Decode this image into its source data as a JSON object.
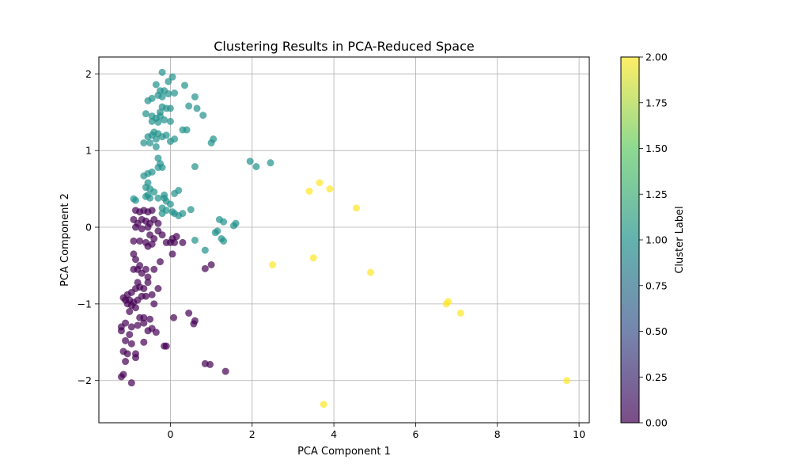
{
  "chart_data": {
    "type": "scatter",
    "title": "Clustering Results in PCA-Reduced Space",
    "xlabel": "PCA Component 1",
    "ylabel": "PCA Component 2",
    "xlim": [
      -1.75,
      10.25
    ],
    "ylim": [
      -2.55,
      2.22
    ],
    "xticks": [
      0,
      2,
      4,
      6,
      8,
      10
    ],
    "xtick_labels": [
      "0",
      "2",
      "4",
      "6",
      "8",
      "10"
    ],
    "yticks": [
      -2,
      -1,
      0,
      1,
      2
    ],
    "ytick_labels": [
      "−2",
      "−1",
      "0",
      "1",
      "2"
    ],
    "grid": true,
    "colorbar": {
      "label": "Cluster Label",
      "range": [
        0,
        2
      ],
      "ticks": [
        0,
        0.25,
        0.5,
        0.75,
        1.0,
        1.25,
        1.5,
        1.75,
        2.0
      ],
      "tick_labels": [
        "0.00",
        "0.25",
        "0.50",
        "0.75",
        "1.00",
        "1.25",
        "1.50",
        "1.75",
        "2.00"
      ],
      "colormap": [
        "#440154",
        "#3b528b",
        "#21918c",
        "#5ec962",
        "#fde725"
      ]
    },
    "series": [
      {
        "cluster": 0,
        "color": "#440154",
        "points": [
          [
            -0.85,
            0.22
          ],
          [
            -0.75,
            0.2
          ],
          [
            -0.65,
            0.22
          ],
          [
            -0.55,
            0.2
          ],
          [
            -0.45,
            0.22
          ],
          [
            -0.9,
            0.1
          ],
          [
            -0.8,
            0.05
          ],
          [
            -0.7,
            0.1
          ],
          [
            -0.6,
            0.08
          ],
          [
            -0.5,
            0.05
          ],
          [
            -0.4,
            0.1
          ],
          [
            -0.3,
            0.05
          ],
          [
            -0.85,
            0.0
          ],
          [
            -0.7,
            -0.02
          ],
          [
            -0.55,
            0.0
          ],
          [
            -0.3,
            -0.05
          ],
          [
            -0.2,
            -0.1
          ],
          [
            -0.5,
            -0.1
          ],
          [
            -0.4,
            -0.15
          ],
          [
            -0.9,
            -0.18
          ],
          [
            -0.75,
            -0.18
          ],
          [
            -0.6,
            -0.2
          ],
          [
            -0.45,
            -0.22
          ],
          [
            -0.55,
            -0.25
          ],
          [
            -0.1,
            -0.2
          ],
          [
            0.0,
            -0.2
          ],
          [
            0.05,
            -0.15
          ],
          [
            0.15,
            -0.12
          ],
          [
            0.1,
            -0.2
          ],
          [
            0.3,
            -0.2
          ],
          [
            0.05,
            -0.35
          ],
          [
            -0.25,
            -0.45
          ],
          [
            -0.9,
            -0.35
          ],
          [
            -0.85,
            -0.42
          ],
          [
            -0.75,
            -0.5
          ],
          [
            -0.9,
            -0.55
          ],
          [
            -0.8,
            -0.55
          ],
          [
            -0.6,
            -0.55
          ],
          [
            -0.7,
            -0.6
          ],
          [
            -0.4,
            -0.55
          ],
          [
            -0.55,
            -0.65
          ],
          [
            -0.55,
            -0.72
          ],
          [
            -0.8,
            -0.72
          ],
          [
            -0.75,
            -0.78
          ],
          [
            -0.65,
            -0.8
          ],
          [
            -0.85,
            -0.8
          ],
          [
            -0.95,
            -0.85
          ],
          [
            -1.05,
            -0.88
          ],
          [
            -1.15,
            -0.92
          ],
          [
            -1.1,
            -0.95
          ],
          [
            -1.0,
            -0.95
          ],
          [
            -0.9,
            -0.98
          ],
          [
            -0.8,
            -0.95
          ],
          [
            -0.7,
            -0.9
          ],
          [
            -1.05,
            -1.0
          ],
          [
            -0.95,
            -1.02
          ],
          [
            -0.85,
            -1.05
          ],
          [
            -1.0,
            -1.1
          ],
          [
            -0.6,
            -0.9
          ],
          [
            -0.45,
            -0.88
          ],
          [
            -0.3,
            -0.8
          ],
          [
            -0.4,
            -1.0
          ],
          [
            -0.75,
            -1.18
          ],
          [
            -0.65,
            -1.18
          ],
          [
            -0.5,
            -1.2
          ],
          [
            -0.65,
            -1.25
          ],
          [
            -0.8,
            -1.28
          ],
          [
            -0.95,
            -1.3
          ],
          [
            -1.1,
            -1.25
          ],
          [
            -1.2,
            -1.3
          ],
          [
            -1.2,
            -1.35
          ],
          [
            -1.0,
            -1.4
          ],
          [
            -0.55,
            -1.35
          ],
          [
            -0.45,
            -1.32
          ],
          [
            -0.35,
            -1.37
          ],
          [
            -1.1,
            -1.48
          ],
          [
            -0.95,
            -1.52
          ],
          [
            -0.65,
            -1.5
          ],
          [
            -0.15,
            -1.55
          ],
          [
            -0.1,
            -1.55
          ],
          [
            -1.15,
            -1.62
          ],
          [
            -1.05,
            -1.65
          ],
          [
            -0.85,
            -1.65
          ],
          [
            -0.85,
            -1.7
          ],
          [
            -1.1,
            -1.75
          ],
          [
            -1.15,
            -1.92
          ],
          [
            -1.2,
            -1.95
          ],
          [
            -0.95,
            -2.03
          ],
          [
            0.08,
            -1.18
          ],
          [
            0.45,
            -1.12
          ],
          [
            0.6,
            -1.22
          ],
          [
            0.57,
            -1.26
          ],
          [
            0.85,
            -0.54
          ],
          [
            1.0,
            -0.49
          ],
          [
            0.85,
            -1.78
          ],
          [
            0.97,
            -1.79
          ],
          [
            1.35,
            -1.88
          ]
        ]
      },
      {
        "cluster": 1,
        "color": "#21918c",
        "points": [
          [
            -0.2,
            2.02
          ],
          [
            0.05,
            1.96
          ],
          [
            -0.05,
            1.9
          ],
          [
            -0.35,
            1.86
          ],
          [
            -0.25,
            1.78
          ],
          [
            -0.15,
            1.78
          ],
          [
            -0.05,
            1.74
          ],
          [
            0.1,
            1.75
          ],
          [
            0.35,
            1.85
          ],
          [
            -0.3,
            1.72
          ],
          [
            -0.2,
            1.7
          ],
          [
            -0.45,
            1.68
          ],
          [
            -0.55,
            1.65
          ],
          [
            -0.2,
            1.57
          ],
          [
            -0.1,
            1.55
          ],
          [
            0.0,
            1.55
          ],
          [
            -0.25,
            1.5
          ],
          [
            0.45,
            1.58
          ],
          [
            0.65,
            1.55
          ],
          [
            0.6,
            1.7
          ],
          [
            0.8,
            1.46
          ],
          [
            -0.6,
            1.48
          ],
          [
            -0.45,
            1.45
          ],
          [
            -0.35,
            1.42
          ],
          [
            -0.25,
            1.45
          ],
          [
            -0.15,
            1.4
          ],
          [
            -0.3,
            1.37
          ],
          [
            0.0,
            1.38
          ],
          [
            -0.45,
            1.38
          ],
          [
            0.3,
            1.27
          ],
          [
            0.4,
            1.27
          ],
          [
            -0.4,
            1.24
          ],
          [
            -0.3,
            1.22
          ],
          [
            -0.55,
            1.18
          ],
          [
            -0.45,
            1.2
          ],
          [
            -0.35,
            1.15
          ],
          [
            -0.2,
            1.18
          ],
          [
            -0.1,
            1.2
          ],
          [
            0.1,
            1.15
          ],
          [
            0.0,
            1.12
          ],
          [
            -0.5,
            1.1
          ],
          [
            -0.65,
            1.1
          ],
          [
            -0.35,
            1.05
          ],
          [
            1.05,
            1.15
          ],
          [
            1.0,
            1.1
          ],
          [
            -0.3,
            0.9
          ],
          [
            -0.25,
            0.83
          ],
          [
            -0.2,
            0.78
          ],
          [
            -0.3,
            0.78
          ],
          [
            -0.45,
            0.72
          ],
          [
            -0.55,
            0.7
          ],
          [
            -0.65,
            0.67
          ],
          [
            0.6,
            0.79
          ],
          [
            1.95,
            0.86
          ],
          [
            2.1,
            0.79
          ],
          [
            2.45,
            0.84
          ],
          [
            -0.55,
            0.58
          ],
          [
            -0.6,
            0.52
          ],
          [
            -0.5,
            0.5
          ],
          [
            -0.4,
            0.46
          ],
          [
            -0.55,
            0.42
          ],
          [
            -0.5,
            0.38
          ],
          [
            -0.6,
            0.4
          ],
          [
            -0.15,
            0.42
          ],
          [
            -0.15,
            0.38
          ],
          [
            0.2,
            0.48
          ],
          [
            0.1,
            0.44
          ],
          [
            -0.9,
            0.37
          ],
          [
            -0.85,
            0.35
          ],
          [
            -0.3,
            0.38
          ],
          [
            -0.1,
            0.34
          ],
          [
            0.0,
            0.3
          ],
          [
            -0.2,
            0.25
          ],
          [
            -0.1,
            0.22
          ],
          [
            0.05,
            0.2
          ],
          [
            -0.2,
            0.18
          ],
          [
            0.1,
            0.18
          ],
          [
            0.2,
            0.15
          ],
          [
            0.3,
            0.18
          ],
          [
            0.5,
            0.23
          ],
          [
            1.2,
            0.1
          ],
          [
            1.3,
            0.07
          ],
          [
            1.6,
            0.05
          ],
          [
            1.55,
            0.02
          ],
          [
            1.15,
            -0.05
          ],
          [
            1.1,
            -0.07
          ],
          [
            0.6,
            -0.17
          ],
          [
            1.25,
            -0.15
          ],
          [
            1.3,
            -0.18
          ],
          [
            0.85,
            -0.3
          ]
        ]
      },
      {
        "cluster": 2,
        "color": "#fde725",
        "points": [
          [
            3.4,
            0.47
          ],
          [
            3.65,
            0.58
          ],
          [
            3.9,
            0.5
          ],
          [
            4.55,
            0.25
          ],
          [
            3.5,
            -0.4
          ],
          [
            2.5,
            -0.49
          ],
          [
            4.9,
            -0.59
          ],
          [
            6.75,
            -1.0
          ],
          [
            6.8,
            -0.97
          ],
          [
            7.1,
            -1.12
          ],
          [
            9.7,
            -2.0
          ],
          [
            3.75,
            -2.31
          ]
        ]
      }
    ]
  }
}
